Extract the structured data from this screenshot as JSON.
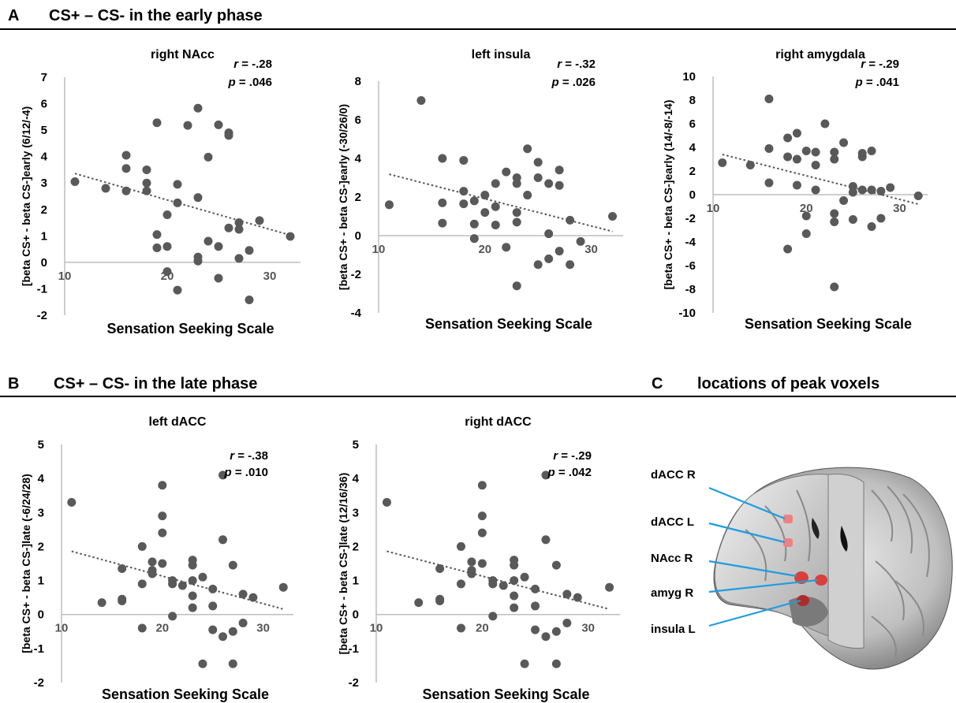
{
  "section_a": {
    "letter": "A",
    "title": "CS+ – CS- in the early phase"
  },
  "section_b": {
    "letter": "B",
    "title": "CS+ – CS- in the late phase"
  },
  "section_c": {
    "letter": "C",
    "title": "locations of peak voxels"
  },
  "brain": {
    "labels": [
      "dACC R",
      "dACC L",
      "NAcc R",
      "amyg R",
      "insula L"
    ],
    "label_color": "#1f9ce0",
    "roi_color": "#e8504a"
  },
  "chart_data": [
    {
      "type": "scatter",
      "title": "right NAcc",
      "xlabel": "Sensation Seeking Scale",
      "ylabel": "[beta CS+ - beta CS-]early (6/12/-4)",
      "r": "r = -.28",
      "p": "p = .046",
      "xlim": [
        10,
        33
      ],
      "ylim": [
        -2,
        7
      ],
      "xticks": [
        "10",
        "20",
        "30"
      ],
      "yticks": [
        "-2",
        "-1",
        "0",
        "1",
        "2",
        "3",
        "4",
        "5",
        "6",
        "7"
      ],
      "trendline": {
        "slope": -0.111,
        "intercept": 4.58
      },
      "points": [
        [
          11,
          3.05
        ],
        [
          14,
          2.8
        ],
        [
          16,
          4.05
        ],
        [
          16,
          3.55
        ],
        [
          16,
          2.7
        ],
        [
          18,
          3.5
        ],
        [
          18,
          3.0
        ],
        [
          18,
          2.7
        ],
        [
          19,
          5.28
        ],
        [
          19,
          1.05
        ],
        [
          19,
          0.55
        ],
        [
          20,
          1.8
        ],
        [
          20,
          0.6
        ],
        [
          20,
          -0.35
        ],
        [
          21,
          2.95
        ],
        [
          21,
          2.25
        ],
        [
          21,
          -1.05
        ],
        [
          22,
          5.18
        ],
        [
          23,
          5.83
        ],
        [
          23,
          2.45
        ],
        [
          23,
          0.2
        ],
        [
          23,
          0.05
        ],
        [
          24,
          3.98
        ],
        [
          24,
          0.8
        ],
        [
          25,
          5.2
        ],
        [
          25,
          0.6
        ],
        [
          25,
          -0.6
        ],
        [
          26,
          4.9
        ],
        [
          26,
          4.8
        ],
        [
          26,
          1.3
        ],
        [
          27,
          1.5
        ],
        [
          27,
          1.25
        ],
        [
          27,
          0.15
        ],
        [
          28,
          0.45
        ],
        [
          28,
          -1.42
        ],
        [
          29,
          1.58
        ],
        [
          32,
          0.98
        ]
      ],
      "marker_color": "#595959"
    },
    {
      "type": "scatter",
      "title": "left insula",
      "xlabel": "Sensation Seeking Scale",
      "ylabel": "[beta CS+ - beta CS-]early (-30/26/0)",
      "r": "r = -.32",
      "p": "p = .026",
      "xlim": [
        10,
        33
      ],
      "ylim": [
        -4,
        8
      ],
      "xticks": [
        "10",
        "20",
        "30"
      ],
      "yticks": [
        "-4",
        "-2",
        "0",
        "2",
        "4",
        "6",
        "8"
      ],
      "trendline": {
        "slope": -0.141,
        "intercept": 4.73
      },
      "points": [
        [
          11,
          1.6
        ],
        [
          14,
          7.0
        ],
        [
          16,
          4.0
        ],
        [
          16,
          1.7
        ],
        [
          16,
          0.65
        ],
        [
          18,
          3.9
        ],
        [
          18,
          2.3
        ],
        [
          18,
          1.65
        ],
        [
          19,
          1.8
        ],
        [
          19,
          0.6
        ],
        [
          19,
          -0.15
        ],
        [
          20,
          2.1
        ],
        [
          20,
          1.2
        ],
        [
          21,
          2.7
        ],
        [
          21,
          1.5
        ],
        [
          21,
          0.55
        ],
        [
          22,
          3.3
        ],
        [
          22,
          -0.6
        ],
        [
          23,
          3.0
        ],
        [
          23,
          2.7
        ],
        [
          23,
          1.2
        ],
        [
          23,
          0.7
        ],
        [
          23,
          -2.6
        ],
        [
          24,
          4.5
        ],
        [
          24,
          2.1
        ],
        [
          25,
          3.8
        ],
        [
          25,
          3.0
        ],
        [
          25,
          -1.5
        ],
        [
          26,
          2.7
        ],
        [
          26,
          0.1
        ],
        [
          26,
          -1.2
        ],
        [
          27,
          3.4
        ],
        [
          27,
          2.6
        ],
        [
          27,
          -0.8
        ],
        [
          28,
          0.8
        ],
        [
          28,
          -1.5
        ],
        [
          29,
          -0.3
        ],
        [
          32,
          1.0
        ]
      ],
      "marker_color": "#595959"
    },
    {
      "type": "scatter",
      "title": "right amygdala",
      "xlabel": "Sensation Seeking Scale",
      "ylabel": "[beta CS+ - beta CS-]early (14/-8/-14)",
      "r": "r = -.29",
      "p": "p = .041",
      "xlim": [
        10,
        33
      ],
      "ylim": [
        -10,
        10
      ],
      "xticks": [
        "10",
        "20",
        "30"
      ],
      "yticks": [
        "-10",
        "-8",
        "-6",
        "-4",
        "-2",
        "0",
        "2",
        "4",
        "6",
        "8",
        "10"
      ],
      "trendline": {
        "slope": -0.2,
        "intercept": 5.6
      },
      "points": [
        [
          11,
          2.7
        ],
        [
          14,
          2.5
        ],
        [
          16,
          8.1
        ],
        [
          16,
          3.9
        ],
        [
          16,
          1.0
        ],
        [
          18,
          4.8
        ],
        [
          18,
          3.2
        ],
        [
          18,
          -4.6
        ],
        [
          19,
          5.2
        ],
        [
          19,
          3.0
        ],
        [
          19,
          0.8
        ],
        [
          20,
          3.7
        ],
        [
          20,
          -1.8
        ],
        [
          20,
          -3.3
        ],
        [
          21,
          3.6
        ],
        [
          21,
          2.5
        ],
        [
          21,
          0.4
        ],
        [
          22,
          6.0
        ],
        [
          23,
          3.6
        ],
        [
          23,
          3.0
        ],
        [
          23,
          -1.6
        ],
        [
          23,
          -2.3
        ],
        [
          23,
          -7.8
        ],
        [
          24,
          4.4
        ],
        [
          24,
          -0.5
        ],
        [
          25,
          0.7
        ],
        [
          25,
          0.2
        ],
        [
          25,
          -2.1
        ],
        [
          26,
          3.5
        ],
        [
          26,
          3.2
        ],
        [
          26,
          0.4
        ],
        [
          27,
          3.7
        ],
        [
          27,
          0.4
        ],
        [
          27,
          -2.7
        ],
        [
          28,
          0.3
        ],
        [
          28,
          -2.0
        ],
        [
          29,
          0.6
        ],
        [
          32,
          -0.1
        ]
      ],
      "marker_color": "#595959"
    },
    {
      "type": "scatter",
      "title": "left dACC",
      "xlabel": "Sensation Seeking Scale",
      "ylabel": "[beta CS+ - beta CS-]late (-6/24/28)",
      "r": "r = -.38",
      "p": "p = .010",
      "xlim": [
        10,
        33
      ],
      "ylim": [
        -2,
        5
      ],
      "xticks": [
        "10",
        "20",
        "30"
      ],
      "yticks": [
        "-2",
        "-1",
        "0",
        "1",
        "2",
        "3",
        "4",
        "5"
      ],
      "trendline": {
        "slope": -0.081,
        "intercept": 2.75
      },
      "points": [
        [
          11,
          3.3
        ],
        [
          14,
          0.35
        ],
        [
          16,
          1.35
        ],
        [
          16,
          0.45
        ],
        [
          16,
          0.4
        ],
        [
          18,
          2.0
        ],
        [
          18,
          0.9
        ],
        [
          18,
          -0.4
        ],
        [
          19,
          1.55
        ],
        [
          19,
          1.3
        ],
        [
          19,
          1.2
        ],
        [
          20,
          3.8
        ],
        [
          20,
          2.9
        ],
        [
          20,
          2.4
        ],
        [
          20,
          1.5
        ],
        [
          21,
          1.0
        ],
        [
          21,
          0.9
        ],
        [
          21,
          -0.05
        ],
        [
          22,
          0.85
        ],
        [
          23,
          1.6
        ],
        [
          23,
          1.45
        ],
        [
          23,
          1.0
        ],
        [
          23,
          0.55
        ],
        [
          23,
          0.2
        ],
        [
          24,
          1.1
        ],
        [
          24,
          -1.45
        ],
        [
          25,
          0.75
        ],
        [
          25,
          0.25
        ],
        [
          25,
          -0.45
        ],
        [
          26,
          4.1
        ],
        [
          26,
          2.2
        ],
        [
          26,
          -0.65
        ],
        [
          27,
          1.45
        ],
        [
          27,
          -0.5
        ],
        [
          27,
          -1.45
        ],
        [
          28,
          0.6
        ],
        [
          28,
          -0.25
        ],
        [
          29,
          0.5
        ],
        [
          32,
          0.8
        ]
      ],
      "marker_color": "#595959"
    },
    {
      "type": "scatter",
      "title": "right dACC",
      "xlabel": "Sensation Seeking Scale",
      "ylabel": "[beta CS+ - beta CS-]late (12/16/36)",
      "r": "r = -.29",
      "p": "p = .042",
      "xlim": [
        10,
        33
      ],
      "ylim": [
        -2,
        5
      ],
      "xticks": [
        "10",
        "20",
        "30"
      ],
      "yticks": [
        "-2",
        "-1",
        "0",
        "1",
        "2",
        "3",
        "4",
        "5"
      ],
      "trendline": {
        "slope": -0.081,
        "intercept": 2.75
      },
      "points": [
        [
          11,
          3.3
        ],
        [
          14,
          0.35
        ],
        [
          16,
          1.35
        ],
        [
          16,
          0.45
        ],
        [
          16,
          0.4
        ],
        [
          18,
          2.0
        ],
        [
          18,
          0.9
        ],
        [
          18,
          -0.4
        ],
        [
          19,
          1.55
        ],
        [
          19,
          1.3
        ],
        [
          19,
          1.2
        ],
        [
          20,
          3.8
        ],
        [
          20,
          2.9
        ],
        [
          20,
          2.4
        ],
        [
          20,
          1.5
        ],
        [
          21,
          1.0
        ],
        [
          21,
          0.9
        ],
        [
          21,
          -0.05
        ],
        [
          22,
          0.85
        ],
        [
          23,
          1.6
        ],
        [
          23,
          1.45
        ],
        [
          23,
          1.0
        ],
        [
          23,
          0.55
        ],
        [
          23,
          0.2
        ],
        [
          24,
          1.1
        ],
        [
          24,
          -1.45
        ],
        [
          25,
          0.75
        ],
        [
          25,
          0.25
        ],
        [
          25,
          -0.45
        ],
        [
          26,
          4.1
        ],
        [
          26,
          2.2
        ],
        [
          26,
          -0.65
        ],
        [
          27,
          1.45
        ],
        [
          27,
          -0.5
        ],
        [
          27,
          -1.45
        ],
        [
          28,
          0.6
        ],
        [
          28,
          -0.25
        ],
        [
          29,
          0.5
        ],
        [
          32,
          0.8
        ]
      ],
      "marker_color": "#595959"
    }
  ]
}
